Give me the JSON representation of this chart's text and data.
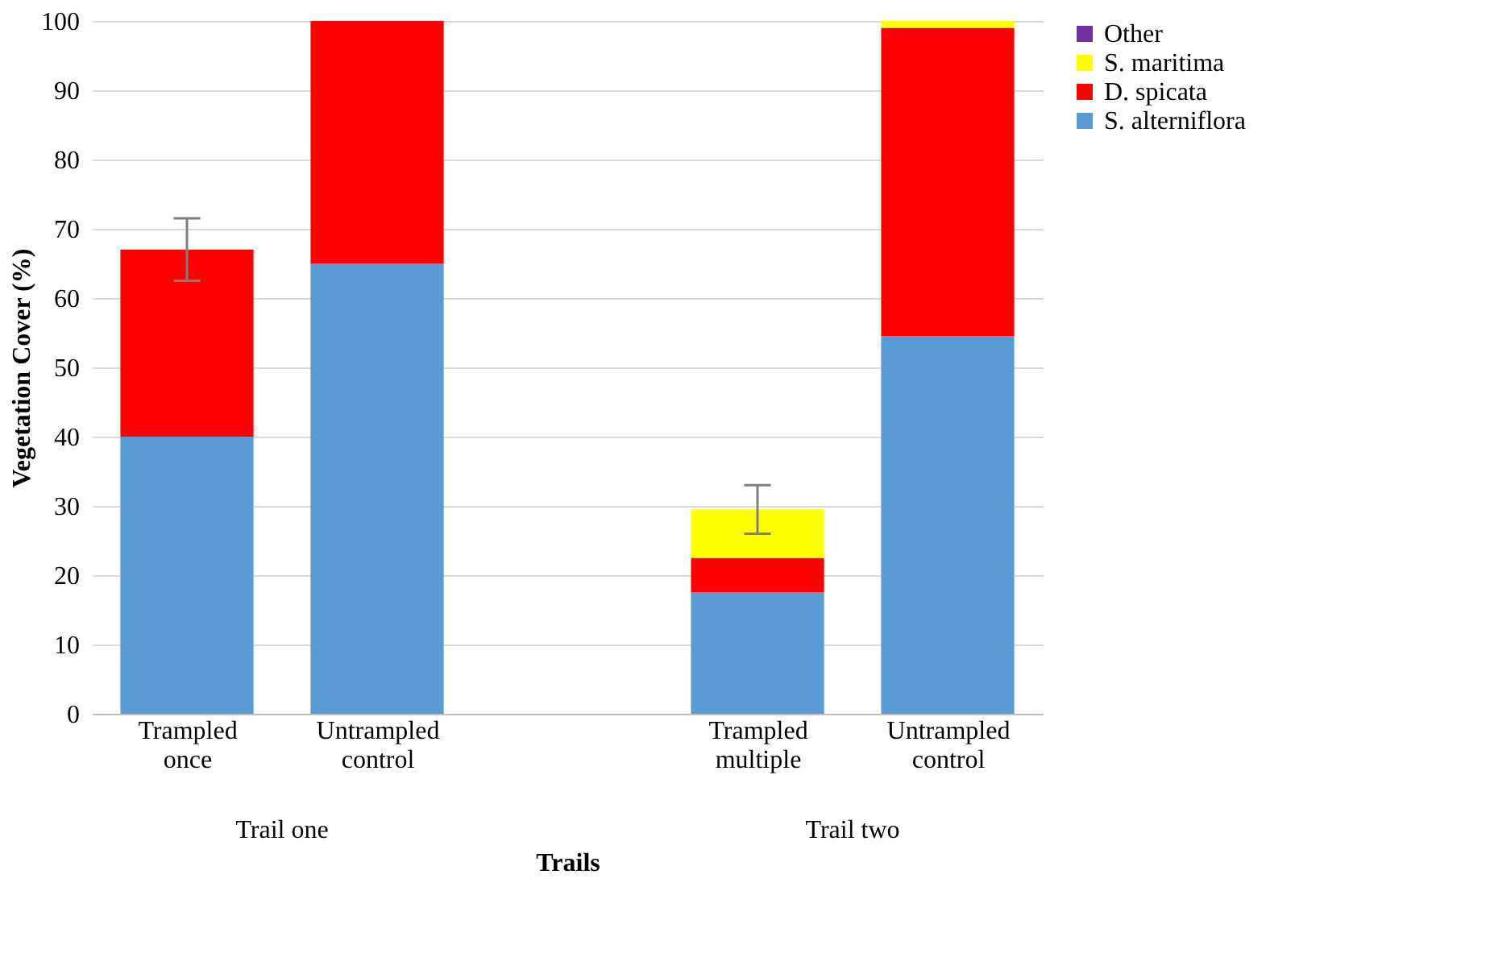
{
  "chart_data": {
    "type": "bar",
    "stacked": true,
    "xlabel": "Trails",
    "ylabel": "Vegetation Cover (%)",
    "categories": [
      "Trampled once",
      "Untrampled control",
      null,
      "Trampled multiple",
      "Untrampled control"
    ],
    "series": [
      {
        "name": "S. alterniflora",
        "color": "#5b9bd5",
        "values": [
          40,
          65,
          null,
          17.5,
          54.5
        ]
      },
      {
        "name": "D. spicata",
        "color": "#ff0000",
        "values": [
          27,
          35,
          null,
          5,
          44.5
        ],
        "errors": [
          4.5,
          null,
          null,
          null,
          null
        ]
      },
      {
        "name": "S. maritima",
        "color": "#ffff00",
        "values": [
          0,
          0,
          null,
          7,
          1
        ],
        "errors": [
          null,
          null,
          null,
          3.5,
          null
        ]
      },
      {
        "name": "Other",
        "color": "#7030a0",
        "values": [
          0,
          0,
          null,
          0,
          0
        ]
      }
    ],
    "annotations": [
      "Trail one",
      "Trail two"
    ],
    "ylim": [
      0,
      100
    ],
    "yticks": [
      0,
      10,
      20,
      30,
      40,
      50,
      60,
      70,
      80,
      90,
      100
    ],
    "grid": "y",
    "legend": "right"
  }
}
